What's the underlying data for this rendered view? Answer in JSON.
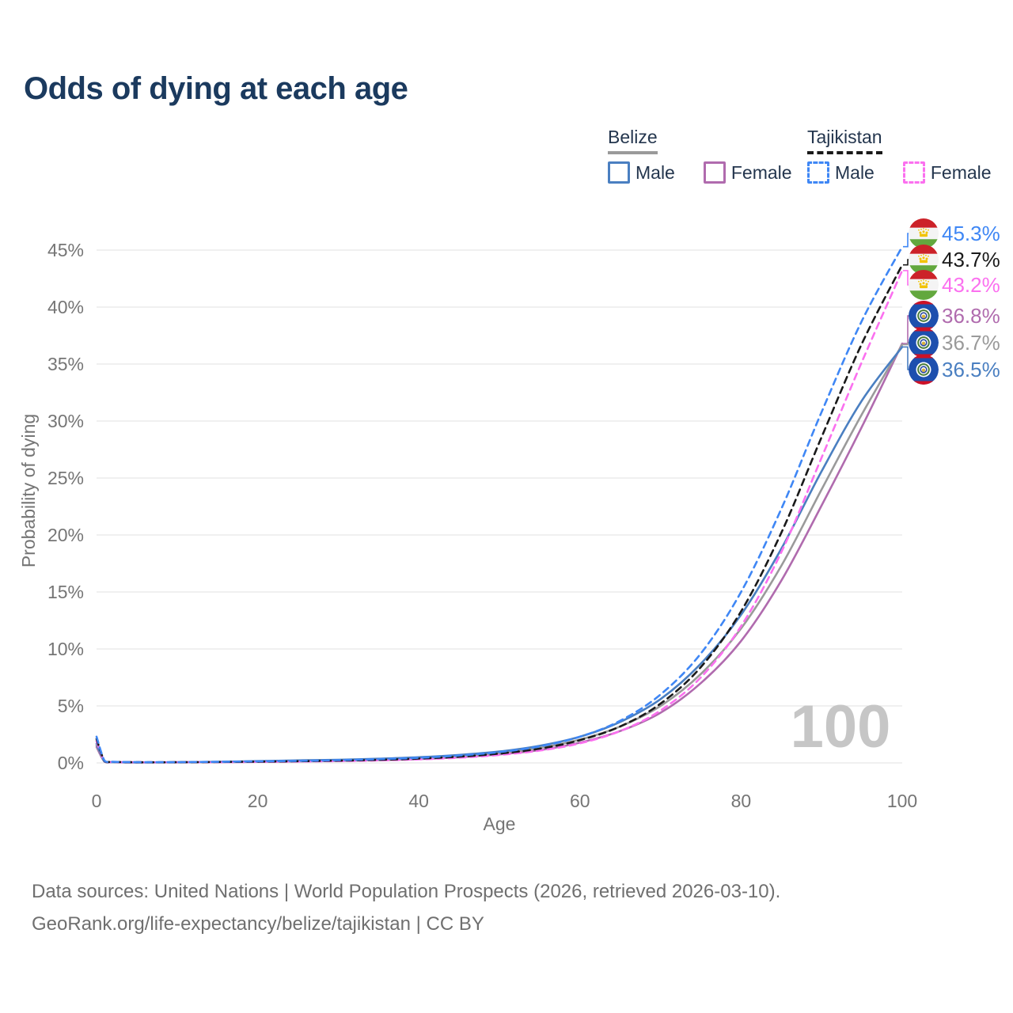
{
  "title": "Odds of dying at each age",
  "legend": {
    "groups": [
      {
        "country": "Belize",
        "line_style": "solid",
        "underline_color": "#9a9a9a",
        "items": [
          {
            "label": "Male",
            "color_key": "belize_male"
          },
          {
            "label": "Female",
            "color_key": "belize_female"
          }
        ]
      },
      {
        "country": "Tajikistan",
        "line_style": "dashed",
        "underline_color": "#1a1a1a",
        "items": [
          {
            "label": "Male",
            "color_key": "tajikistan_male"
          },
          {
            "label": "Female",
            "color_key": "tajikistan_female"
          }
        ]
      }
    ]
  },
  "colors": {
    "belize_male": "#4a7fc1",
    "belize_female": "#b06bae",
    "belize_avg": "#9a9a9a",
    "tajikistan_male": "#3f87f5",
    "tajikistan_female": "#fb70ef",
    "tajikistan_avg": "#1a1a1a",
    "title_text": "#1b3a5e",
    "axis_text": "#757575",
    "grid": "#e8e8e8",
    "watermark": "#c6c6c6",
    "footer_text": "#6f6f6f"
  },
  "watermark": "100",
  "footer": {
    "line1": "Data sources: United Nations | World Population Prospects (2026, retrieved 2026-03-10).",
    "line2": "GeoRank.org/life-expectancy/belize/tajikistan | CC BY"
  },
  "chart_data": {
    "type": "line",
    "title": "Odds of dying at each age",
    "xlabel": "Age",
    "ylabel": "Probability of dying",
    "xlim": [
      0,
      100
    ],
    "ylim": [
      0,
      45
    ],
    "xticks": [
      0,
      20,
      40,
      60,
      80,
      100
    ],
    "yticks": [
      0,
      5,
      10,
      15,
      20,
      25,
      30,
      35,
      40,
      45
    ],
    "ytick_suffix": "%",
    "grid": "horizontal",
    "legend_position": "top-right",
    "x": [
      0,
      1,
      2,
      5,
      10,
      15,
      20,
      25,
      30,
      35,
      40,
      45,
      50,
      55,
      60,
      65,
      70,
      75,
      80,
      85,
      90,
      95,
      100
    ],
    "series": [
      {
        "name": "Belize Female",
        "country": "Belize",
        "sex": "Female",
        "color_key": "belize_female",
        "dashed": false,
        "end_label": "36.8%",
        "values": [
          1.4,
          0.1,
          0.06,
          0.04,
          0.05,
          0.06,
          0.09,
          0.13,
          0.18,
          0.24,
          0.33,
          0.5,
          0.75,
          1.12,
          1.78,
          2.8,
          4.4,
          7.0,
          10.7,
          16.0,
          22.6,
          29.5,
          36.8
        ]
      },
      {
        "name": "Belize Both sexes",
        "country": "Belize",
        "sex": "Both",
        "color_key": "belize_avg",
        "dashed": false,
        "end_label": "36.7%",
        "values": [
          1.55,
          0.11,
          0.06,
          0.05,
          0.05,
          0.08,
          0.13,
          0.18,
          0.23,
          0.3,
          0.42,
          0.6,
          0.88,
          1.32,
          2.05,
          3.2,
          5.0,
          7.8,
          11.8,
          17.3,
          24.0,
          30.6,
          36.7
        ]
      },
      {
        "name": "Belize Male",
        "country": "Belize",
        "sex": "Male",
        "color_key": "belize_male",
        "dashed": false,
        "end_label": "36.5%",
        "values": [
          1.7,
          0.12,
          0.07,
          0.05,
          0.06,
          0.1,
          0.16,
          0.22,
          0.28,
          0.37,
          0.5,
          0.7,
          1.0,
          1.5,
          2.3,
          3.6,
          5.6,
          8.7,
          13.0,
          18.8,
          25.6,
          31.8,
          36.5
        ]
      },
      {
        "name": "Tajikistan Female",
        "country": "Tajikistan",
        "sex": "Female",
        "color_key": "tajikistan_female",
        "dashed": true,
        "end_label": "43.2%",
        "values": [
          1.9,
          0.14,
          0.08,
          0.06,
          0.06,
          0.07,
          0.09,
          0.12,
          0.16,
          0.22,
          0.31,
          0.46,
          0.7,
          1.08,
          1.72,
          2.8,
          4.6,
          7.5,
          12.0,
          18.5,
          26.8,
          35.2,
          43.2
        ]
      },
      {
        "name": "Tajikistan Both sexes",
        "country": "Tajikistan",
        "sex": "Both",
        "color_key": "tajikistan_avg",
        "dashed": true,
        "end_label": "43.7%",
        "values": [
          2.1,
          0.16,
          0.09,
          0.06,
          0.06,
          0.08,
          0.11,
          0.15,
          0.2,
          0.27,
          0.38,
          0.55,
          0.82,
          1.25,
          2.0,
          3.2,
          5.2,
          8.4,
          13.3,
          20.2,
          28.6,
          36.8,
          43.7
        ]
      },
      {
        "name": "Tajikistan Male",
        "country": "Tajikistan",
        "sex": "Male",
        "color_key": "tajikistan_male",
        "dashed": true,
        "end_label": "45.3%",
        "values": [
          2.3,
          0.18,
          0.1,
          0.07,
          0.07,
          0.1,
          0.14,
          0.18,
          0.24,
          0.33,
          0.45,
          0.65,
          0.95,
          1.45,
          2.3,
          3.7,
          6.0,
          9.6,
          15.0,
          22.3,
          30.8,
          38.8,
          45.3
        ]
      }
    ],
    "end_labels": [
      {
        "text": "45.3%",
        "series": "Tajikistan Male",
        "color_key": "tajikistan_male",
        "flag": "tajikistan",
        "value": 45.3
      },
      {
        "text": "43.7%",
        "series": "Tajikistan Both sexes",
        "color_key": "tajikistan_avg",
        "flag": "tajikistan",
        "value": 43.7
      },
      {
        "text": "43.2%",
        "series": "Tajikistan Female",
        "color_key": "tajikistan_female",
        "flag": "tajikistan",
        "value": 43.2
      },
      {
        "text": "36.8%",
        "series": "Belize Female",
        "color_key": "belize_female",
        "flag": "belize",
        "value": 36.8
      },
      {
        "text": "36.7%",
        "series": "Belize Both sexes",
        "color_key": "belize_avg",
        "flag": "belize",
        "value": 36.7
      },
      {
        "text": "36.5%",
        "series": "Belize Male",
        "color_key": "belize_male",
        "flag": "belize",
        "value": 36.5
      }
    ]
  }
}
